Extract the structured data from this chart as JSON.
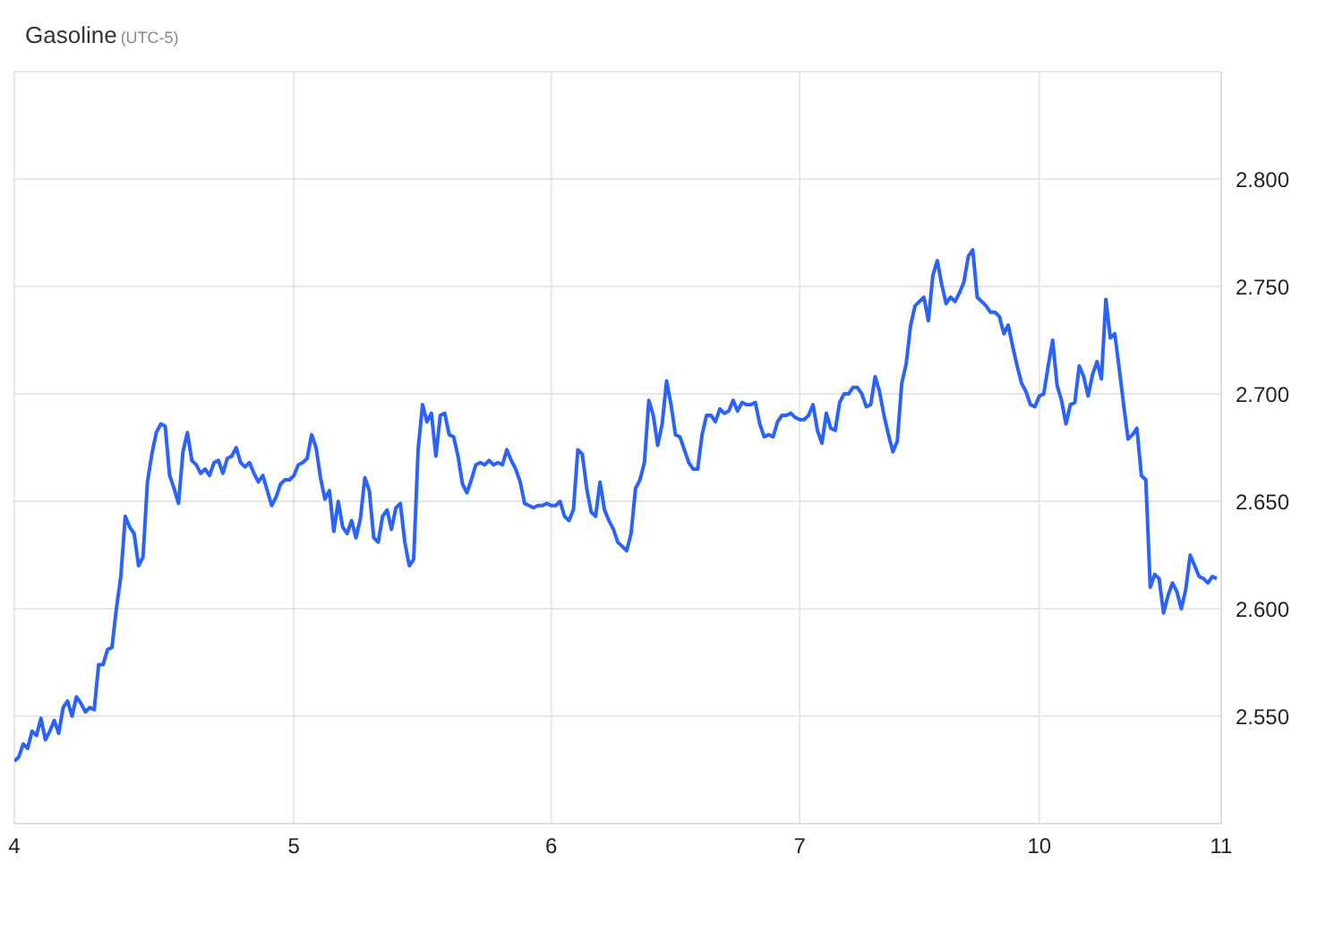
{
  "chart_data": {
    "type": "line",
    "title": "Gasoline",
    "subtitle": "(UTC-5)",
    "categories": [
      "4",
      null,
      null,
      null,
      null,
      null,
      null,
      null,
      null,
      null,
      null,
      null,
      null,
      null,
      null,
      null,
      null,
      null,
      null,
      null,
      null,
      null,
      null,
      null,
      null,
      null,
      null,
      null,
      null,
      null,
      null,
      null,
      null,
      null,
      null,
      null,
      null,
      null,
      null,
      null,
      null,
      null,
      null,
      null,
      null,
      null,
      null,
      null,
      null,
      null,
      null,
      null,
      null,
      null,
      null,
      null,
      null,
      null,
      null,
      null,
      null,
      null,
      null,
      "5",
      null,
      null,
      null,
      null,
      null,
      null,
      null,
      null,
      null,
      null,
      null,
      null,
      null,
      null,
      null,
      null,
      null,
      null,
      null,
      null,
      null,
      null,
      null,
      null,
      null,
      null,
      null,
      null,
      null,
      null,
      null,
      null,
      null,
      null,
      null,
      null,
      null,
      null,
      null,
      null,
      null,
      null,
      null,
      null,
      null,
      null,
      null,
      null,
      null,
      null,
      null,
      null,
      null,
      null,
      null,
      null,
      null,
      "6",
      null,
      null,
      null,
      null,
      null,
      null,
      null,
      null,
      null,
      null,
      null,
      null,
      null,
      null,
      null,
      null,
      null,
      null,
      null,
      null,
      null,
      null,
      null,
      null,
      null,
      null,
      null,
      null,
      null,
      null,
      null,
      null,
      null,
      null,
      null,
      null,
      null,
      null,
      null,
      null,
      null,
      null,
      null,
      null,
      null,
      null,
      null,
      null,
      null,
      null,
      null,
      null,
      null,
      null,
      null,
      "7",
      null,
      null,
      null,
      null,
      null,
      null,
      null,
      null,
      null,
      null,
      null,
      null,
      null,
      null,
      null,
      null,
      null,
      null,
      null,
      null,
      null,
      null,
      null,
      null,
      null,
      null,
      null,
      null,
      null,
      null,
      null,
      null,
      null,
      null,
      null,
      null,
      null,
      null,
      null,
      null,
      null,
      null,
      null,
      null,
      null,
      null,
      null,
      null,
      null,
      null,
      null,
      null,
      null,
      "10",
      null,
      null,
      null,
      null,
      null,
      null,
      null,
      null,
      null,
      null,
      null,
      null,
      null,
      null,
      null,
      null,
      null,
      null,
      null,
      null,
      null,
      null,
      null,
      null,
      null,
      null,
      null,
      null,
      null,
      null,
      null,
      null,
      null,
      null,
      null,
      null,
      null,
      null,
      null,
      null,
      "11"
    ],
    "series": [
      {
        "color": "#2962ff",
        "values": [
          2.529,
          2.531,
          2.537,
          2.535,
          2.543,
          2.541,
          2.549,
          2.539,
          2.543,
          2.548,
          2.542,
          2.554,
          2.557,
          2.55,
          2.559,
          2.556,
          2.552,
          2.554,
          2.553,
          2.574,
          2.574,
          2.581,
          2.582,
          2.6,
          2.615,
          2.643,
          2.638,
          2.635,
          2.62,
          2.624,
          2.659,
          2.672,
          2.682,
          2.686,
          2.685,
          2.662,
          2.656,
          2.649,
          2.673,
          2.682,
          2.669,
          2.667,
          2.663,
          2.665,
          2.662,
          2.668,
          2.669,
          2.663,
          2.67,
          2.671,
          2.675,
          2.668,
          2.666,
          2.668,
          2.663,
          2.659,
          2.662,
          2.655,
          2.648,
          2.652,
          2.658,
          2.66,
          2.66,
          2.662,
          2.667,
          2.668,
          2.67,
          2.681,
          2.675,
          2.661,
          2.651,
          2.655,
          2.636,
          2.65,
          2.638,
          2.635,
          2.641,
          2.633,
          2.642,
          2.661,
          2.655,
          2.633,
          2.631,
          2.643,
          2.646,
          2.637,
          2.647,
          2.649,
          2.631,
          2.62,
          2.623,
          2.674,
          2.695,
          2.687,
          2.691,
          2.671,
          2.69,
          2.691,
          2.681,
          2.68,
          2.671,
          2.658,
          2.654,
          2.66,
          2.667,
          2.668,
          2.667,
          2.669,
          2.667,
          2.668,
          2.667,
          2.674,
          2.669,
          2.665,
          2.659,
          2.649,
          2.648,
          2.647,
          2.648,
          2.648,
          2.649,
          2.648,
          2.648,
          2.65,
          2.643,
          2.641,
          2.646,
          2.674,
          2.672,
          2.656,
          2.645,
          2.643,
          2.659,
          2.646,
          2.641,
          2.637,
          2.631,
          2.629,
          2.627,
          2.635,
          2.656,
          2.66,
          2.668,
          2.697,
          2.69,
          2.676,
          2.686,
          2.706,
          2.695,
          2.681,
          2.68,
          2.674,
          2.668,
          2.665,
          2.665,
          2.681,
          2.69,
          2.69,
          2.687,
          2.693,
          2.691,
          2.692,
          2.697,
          2.692,
          2.696,
          2.695,
          2.695,
          2.696,
          2.686,
          2.68,
          2.681,
          2.68,
          2.687,
          2.69,
          2.69,
          2.691,
          2.689,
          2.688,
          2.688,
          2.69,
          2.695,
          2.683,
          2.677,
          2.691,
          2.684,
          2.683,
          2.696,
          2.7,
          2.7,
          2.703,
          2.703,
          2.7,
          2.694,
          2.695,
          2.708,
          2.701,
          2.69,
          2.681,
          2.673,
          2.678,
          2.705,
          2.714,
          2.732,
          2.741,
          2.743,
          2.745,
          2.734,
          2.755,
          2.762,
          2.751,
          2.742,
          2.745,
          2.743,
          2.747,
          2.752,
          2.764,
          2.767,
          2.745,
          2.743,
          2.741,
          2.738,
          2.738,
          2.736,
          2.728,
          2.732,
          2.722,
          2.713,
          2.705,
          2.701,
          2.695,
          2.694,
          2.699,
          2.7,
          2.713,
          2.725,
          2.704,
          2.697,
          2.686,
          2.695,
          2.696,
          2.713,
          2.708,
          2.699,
          2.709,
          2.715,
          2.707,
          2.744,
          2.726,
          2.728,
          2.712,
          2.695,
          2.679,
          2.681,
          2.684,
          2.662,
          2.66,
          2.61,
          2.616,
          2.614,
          2.598,
          2.606,
          2.612,
          2.608,
          2.6,
          2.609,
          2.625,
          2.62,
          2.615,
          2.614,
          2.612,
          2.615,
          2.614,
          null
        ]
      }
    ],
    "ylim": [
      2.5,
      2.85
    ],
    "yticks": [
      {
        "value": 2.55,
        "label": "2.550"
      },
      {
        "value": 2.6,
        "label": "2.600"
      },
      {
        "value": 2.65,
        "label": "2.650"
      },
      {
        "value": 2.7,
        "label": "2.700"
      },
      {
        "value": 2.75,
        "label": "2.750"
      },
      {
        "value": 2.8,
        "label": "2.800"
      }
    ],
    "grid": true,
    "marker": "none",
    "line_style": "solid"
  }
}
